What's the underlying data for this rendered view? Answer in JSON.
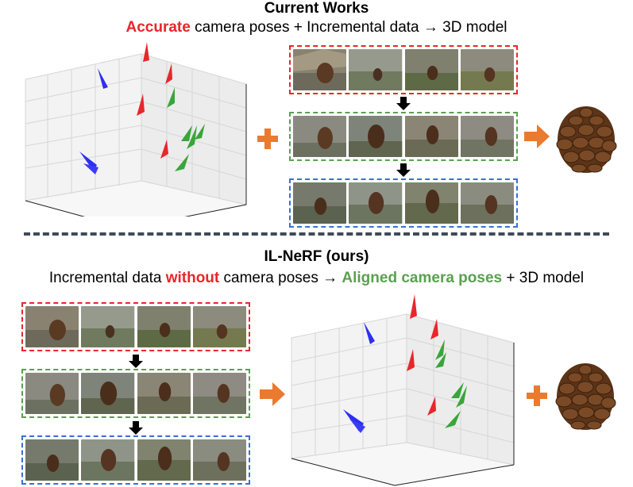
{
  "top": {
    "title": "Current Works",
    "subtitle_parts": {
      "accent": "Accurate",
      "rest": " camera poses  +  Incremental data  →  3D model"
    }
  },
  "bottom": {
    "title": "IL-NeRF (ours)",
    "subtitle_parts": {
      "lead": "Incremental data ",
      "accent_red": "without",
      "mid": " camera poses → ",
      "accent_green": "Aligned camera poses",
      "tail": " + 3D model"
    }
  },
  "colors": {
    "accent_red": "#e8262b",
    "accent_green": "#59a14f",
    "accent_blue": "#3b6fd0",
    "arrow_orange": "#ea7a2e",
    "divider": "#3f4a5a"
  },
  "icons": {
    "plus": "plus-icon",
    "right_arrow": "orange-right-arrow-icon",
    "down_arrow": "black-down-arrow-icon",
    "pinecone": "pinecone-3d-model-icon",
    "camera_cone": "camera-pose-cone-icon"
  }
}
